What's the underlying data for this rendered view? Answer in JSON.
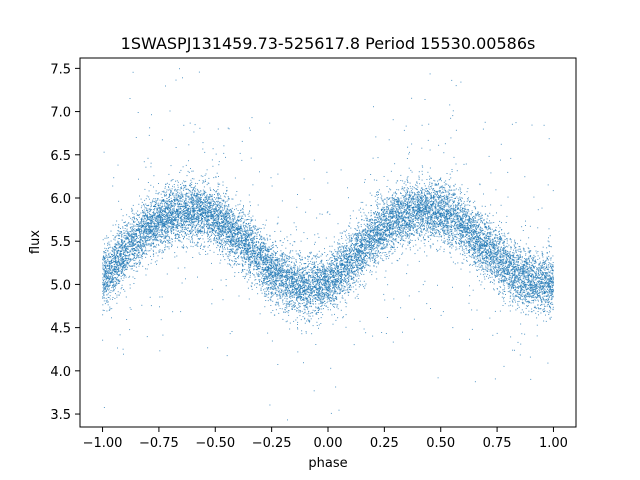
{
  "chart_data": {
    "type": "scatter",
    "title": "1SWASPJ131459.73-525617.8 Period 15530.00586s",
    "xlabel": "phase",
    "ylabel": "flux",
    "xlim": [
      -1.1,
      1.1
    ],
    "ylim": [
      3.35,
      7.62
    ],
    "xticks": [
      -1.0,
      -0.75,
      -0.5,
      -0.25,
      0.0,
      0.25,
      0.5,
      0.75,
      1.0
    ],
    "xtick_labels": [
      "−1.00",
      "−0.75",
      "−0.50",
      "−0.25",
      "0.00",
      "0.25",
      "0.50",
      "0.75",
      "1.00"
    ],
    "yticks": [
      3.5,
      4.0,
      4.5,
      5.0,
      5.5,
      6.0,
      6.5,
      7.0,
      7.5
    ],
    "ytick_labels": [
      "3.5",
      "4.0",
      "4.5",
      "5.0",
      "5.5",
      "6.0",
      "6.5",
      "7.0",
      "7.5"
    ],
    "grid": false,
    "point_color": "#1f77b4",
    "series": [
      {
        "x_range": [
          -1.0,
          1.0
        ],
        "x_step": 0.05,
        "y_mean": [
          5.05,
          5.22,
          5.38,
          5.53,
          5.64,
          5.74,
          5.8,
          5.84,
          5.85,
          5.83,
          5.76,
          5.67,
          5.55,
          5.43,
          5.3,
          5.17,
          5.07,
          5.0,
          4.97,
          4.98,
          5.02,
          5.13,
          5.27,
          5.42,
          5.55,
          5.66,
          5.75,
          5.81,
          5.85,
          5.86,
          5.84,
          5.78,
          5.68,
          5.56,
          5.44,
          5.31,
          5.19,
          5.09,
          5.03,
          5.01,
          5.01
        ],
        "y_spread": 0.17,
        "n_points": 16000
      }
    ]
  }
}
